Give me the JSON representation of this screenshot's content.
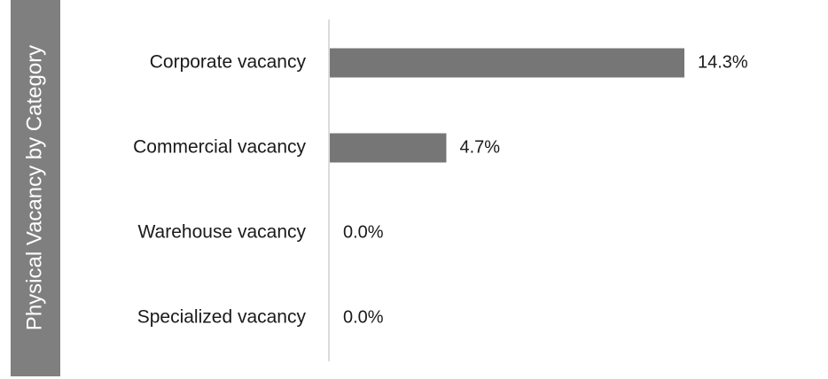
{
  "chart_data": {
    "type": "bar",
    "orientation": "horizontal",
    "title": "Physical Vacancy by Category",
    "categories": [
      "Corporate vacancy",
      "Commercial vacancy",
      "Warehouse vacancy",
      "Specialized vacancy"
    ],
    "values": [
      14.3,
      4.7,
      0.0,
      0.0
    ],
    "value_labels": [
      "14.3%",
      "4.7%",
      "0.0%",
      "0.0%"
    ],
    "color": "#767676"
  }
}
